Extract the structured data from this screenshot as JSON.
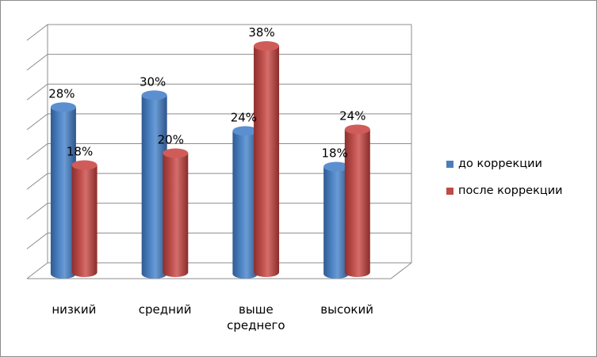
{
  "chart_data": {
    "type": "bar",
    "categories": [
      [
        "низкий"
      ],
      [
        "средний"
      ],
      [
        "выше",
        "среднего"
      ],
      [
        "высокий"
      ]
    ],
    "series": [
      {
        "name": "до коррекции",
        "values": [
          28,
          30,
          24,
          18
        ],
        "labels": [
          "28%",
          "30%",
          "24%",
          "18%"
        ],
        "color": "#4a7ebb"
      },
      {
        "name": "после коррекции",
        "values": [
          18,
          20,
          38,
          24
        ],
        "labels": [
          "18%",
          "20%",
          "38%",
          "24%"
        ],
        "color": "#be4b48"
      }
    ],
    "ylim": [
      0,
      40
    ],
    "gridlines": true,
    "legend_position": "right",
    "bar_shape": "cylinder-3d"
  }
}
